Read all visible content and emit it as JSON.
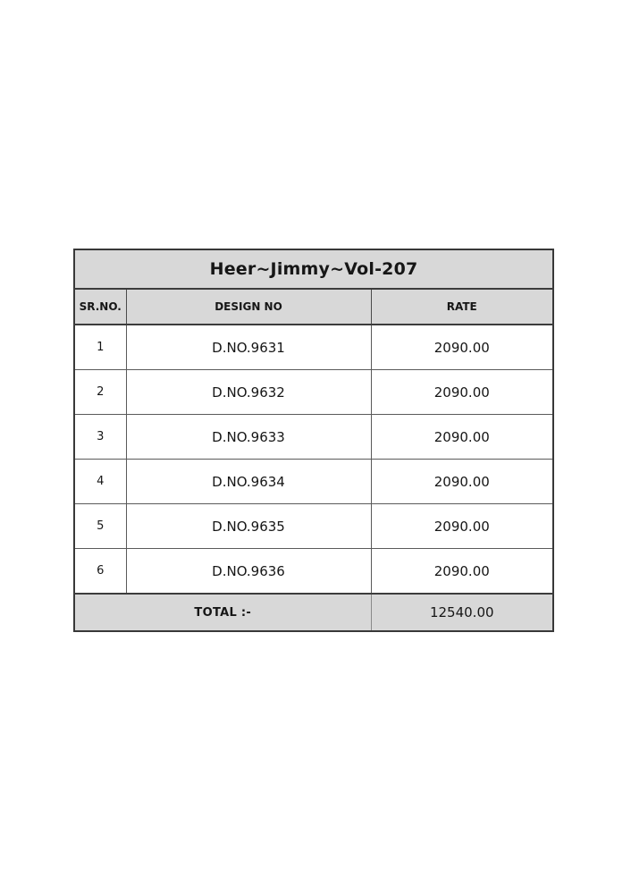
{
  "table": {
    "title": "Heer~Jimmy~Vol-207",
    "columns": [
      "SR.NO.",
      "DESIGN NO",
      "RATE"
    ],
    "rows": [
      {
        "sr": "1",
        "design": "D.NO.9631",
        "rate": "2090.00"
      },
      {
        "sr": "2",
        "design": "D.NO.9632",
        "rate": "2090.00"
      },
      {
        "sr": "3",
        "design": "D.NO.9633",
        "rate": "2090.00"
      },
      {
        "sr": "4",
        "design": "D.NO.9634",
        "rate": "2090.00"
      },
      {
        "sr": "5",
        "design": "D.NO.9635",
        "rate": "2090.00"
      },
      {
        "sr": "6",
        "design": "D.NO.9636",
        "rate": "2090.00"
      }
    ],
    "total_label": "TOTAL :-",
    "total_value": "12540.00",
    "colors": {
      "band_background": "#d8d8d8",
      "border": "#3c3c3c",
      "text": "#161616",
      "page_background": "#ffffff"
    }
  }
}
